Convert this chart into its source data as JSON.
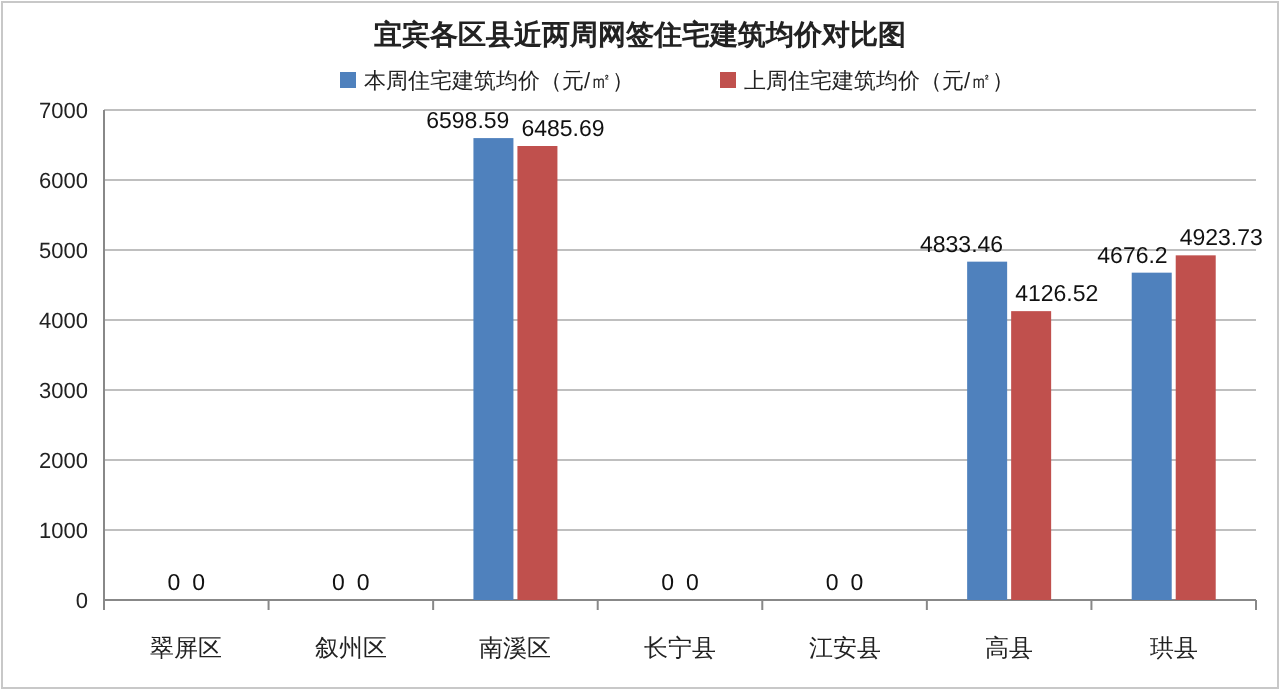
{
  "chart_data": {
    "type": "bar",
    "title": "宜宾各区县近两周网签住宅建筑均价对比图",
    "categories": [
      "翠屏区",
      "叙州区",
      "南溪区",
      "长宁县",
      "江安县",
      "高县",
      "珙县"
    ],
    "series": [
      {
        "name": "本周住宅建筑均价（元/㎡）",
        "color": "#4f81bd",
        "values": [
          0,
          0,
          6598.59,
          0,
          0,
          4833.46,
          4676.2
        ]
      },
      {
        "name": "上周住宅建筑均价（元/㎡）",
        "color": "#c0504d",
        "values": [
          0,
          0,
          6485.69,
          0,
          0,
          4126.52,
          4923.73
        ]
      }
    ],
    "ylim": [
      0,
      7000
    ],
    "yticks": [
      0,
      1000,
      2000,
      3000,
      4000,
      5000,
      6000,
      7000
    ],
    "grid": "y",
    "legend": "top",
    "data_labels": true
  }
}
